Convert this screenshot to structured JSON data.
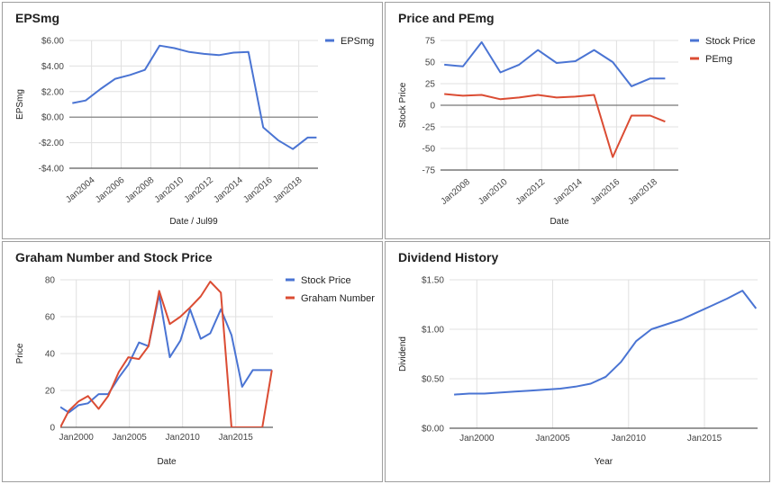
{
  "chart_data": [
    {
      "id": "epsmg",
      "type": "line",
      "title": "EPSmg",
      "xlabel": "Date / Jul99",
      "ylabel": "EPSmg",
      "xlim": [
        2002.5,
        2019.3
      ],
      "ylim": [
        -4,
        6
      ],
      "x_ticks": [
        2004,
        2006,
        2008,
        2010,
        2012,
        2014,
        2016,
        2018
      ],
      "x_tick_labels": [
        "Jan2004",
        "Jan2006",
        "Jan2008",
        "Jan2010",
        "Jan2012",
        "Jan2014",
        "Jan2016",
        "Jan2018"
      ],
      "y_ticks": [
        -4,
        -2,
        0,
        2,
        4,
        6
      ],
      "y_tick_labels": [
        "-$4.00",
        "-$2.00",
        "$0.00",
        "$2.00",
        "$4.00",
        "$6.00"
      ],
      "legend_position": "right",
      "zero_line": true,
      "series": [
        {
          "name": "EPSmg",
          "color": "#4a74d3",
          "x": [
            2002.7,
            2003.6,
            2004.6,
            2005.6,
            2006.6,
            2007.6,
            2008.6,
            2009.6,
            2010.6,
            2011.6,
            2012.6,
            2013.6,
            2014.6,
            2015.6,
            2016.6,
            2017.6,
            2018.6,
            2019.2
          ],
          "y": [
            1.1,
            1.3,
            2.2,
            3.0,
            3.3,
            3.7,
            5.6,
            5.4,
            5.1,
            4.95,
            4.85,
            5.05,
            5.1,
            -0.8,
            -1.8,
            -2.5,
            -1.6,
            -1.6
          ]
        }
      ]
    },
    {
      "id": "price-pemg",
      "type": "line",
      "title": "Price and PEmg",
      "xlabel": "Date",
      "ylabel": "Stock Price",
      "xlim": [
        2006.6,
        2019.3
      ],
      "ylim": [
        -75,
        75
      ],
      "x_ticks": [
        2008,
        2010,
        2012,
        2014,
        2016,
        2018
      ],
      "x_tick_labels": [
        "Jan2008",
        "Jan2010",
        "Jan2012",
        "Jan2014",
        "Jan2016",
        "Jan2018"
      ],
      "y_ticks": [
        -75,
        -50,
        -25,
        0,
        25,
        50,
        75
      ],
      "y_tick_labels": [
        "-75",
        "-50",
        "-25",
        "0",
        "25",
        "50",
        "75"
      ],
      "legend_position": "right",
      "zero_line": true,
      "series": [
        {
          "name": "Stock Price",
          "color": "#4a74d3",
          "x": [
            2006.8,
            2007.8,
            2008.8,
            2009.8,
            2010.8,
            2011.8,
            2012.8,
            2013.8,
            2014.8,
            2015.8,
            2016.8,
            2017.8,
            2018.6
          ],
          "y": [
            47,
            45,
            73,
            38,
            47,
            64,
            49,
            51,
            64,
            50,
            22,
            31,
            31
          ]
        },
        {
          "name": "PEmg",
          "color": "#db4c33",
          "x": [
            2006.8,
            2007.8,
            2008.8,
            2009.8,
            2010.8,
            2011.8,
            2012.8,
            2013.8,
            2014.8,
            2015.8,
            2016.8,
            2017.8,
            2018.6
          ],
          "y": [
            13,
            11,
            12,
            7,
            9,
            12,
            9,
            10,
            12,
            -60,
            -12,
            -12,
            -19
          ]
        }
      ]
    },
    {
      "id": "graham",
      "type": "line",
      "title": "Graham Number and Stock Price",
      "xlabel": "Date",
      "ylabel": "Price",
      "xlim": [
        1998.5,
        2018.5
      ],
      "ylim": [
        0,
        80
      ],
      "x_ticks": [
        2000,
        2005,
        2010,
        2015
      ],
      "x_tick_labels": [
        "Jan2000",
        "Jan2005",
        "Jan2010",
        "Jan2015"
      ],
      "y_ticks": [
        0,
        20,
        40,
        60,
        80
      ],
      "y_tick_labels": [
        "0",
        "20",
        "40",
        "60",
        "80"
      ],
      "legend_position": "right",
      "zero_line": false,
      "series": [
        {
          "name": "Stock Price",
          "color": "#4a74d3",
          "x": [
            1998.5,
            1999.3,
            2000.2,
            2001.1,
            2002.1,
            2003.0,
            2004.0,
            2004.9,
            2005.9,
            2006.8,
            2007.8,
            2008.8,
            2009.8,
            2010.7,
            2011.7,
            2012.6,
            2013.6,
            2014.6,
            2015.6,
            2016.6,
            2017.5,
            2018.4
          ],
          "y": [
            11,
            8,
            12,
            13,
            18,
            18,
            27,
            34,
            46,
            44,
            72,
            38,
            47,
            64,
            48,
            51,
            64,
            50,
            22,
            31,
            31,
            31
          ]
        },
        {
          "name": "Graham Number",
          "color": "#db4c33",
          "x": [
            1998.5,
            1999.3,
            2000.2,
            2001.1,
            2002.1,
            2003.0,
            2004.0,
            2004.9,
            2005.9,
            2006.8,
            2007.8,
            2008.8,
            2009.8,
            2010.7,
            2011.7,
            2012.6,
            2013.6,
            2014.6,
            2015.6,
            2016.6,
            2017.5,
            2018.4
          ],
          "y": [
            0,
            9,
            14,
            17,
            10,
            17,
            30,
            38,
            37,
            44,
            74,
            56,
            60,
            65,
            71,
            79,
            73,
            0,
            0,
            0,
            0,
            31
          ]
        }
      ]
    },
    {
      "id": "dividend",
      "type": "line",
      "title": "Dividend History",
      "xlabel": "Year",
      "ylabel": "Dividend",
      "xlim": [
        1998.2,
        2018.5
      ],
      "ylim": [
        0,
        1.5
      ],
      "x_ticks": [
        2000,
        2005,
        2010,
        2015
      ],
      "x_tick_labels": [
        "Jan2000",
        "Jan2005",
        "Jan2010",
        "Jan2015"
      ],
      "y_ticks": [
        0,
        0.5,
        1.0,
        1.5
      ],
      "y_tick_labels": [
        "$0.00",
        "$0.50",
        "$1.00",
        "$1.50"
      ],
      "legend_position": "none",
      "zero_line": false,
      "series": [
        {
          "name": "",
          "color": "#4a74d3",
          "x": [
            1998.5,
            1999.5,
            2000.5,
            2001.5,
            2002.5,
            2003.5,
            2004.5,
            2005.5,
            2006.5,
            2007.5,
            2008.5,
            2009.5,
            2010.5,
            2011.5,
            2012.5,
            2013.5,
            2014.5,
            2015.5,
            2016.5,
            2017.5,
            2018.4
          ],
          "y": [
            0.34,
            0.35,
            0.35,
            0.36,
            0.37,
            0.38,
            0.39,
            0.4,
            0.42,
            0.45,
            0.52,
            0.67,
            0.88,
            1.0,
            1.05,
            1.1,
            1.17,
            1.24,
            1.31,
            1.39,
            1.21
          ]
        }
      ]
    }
  ]
}
